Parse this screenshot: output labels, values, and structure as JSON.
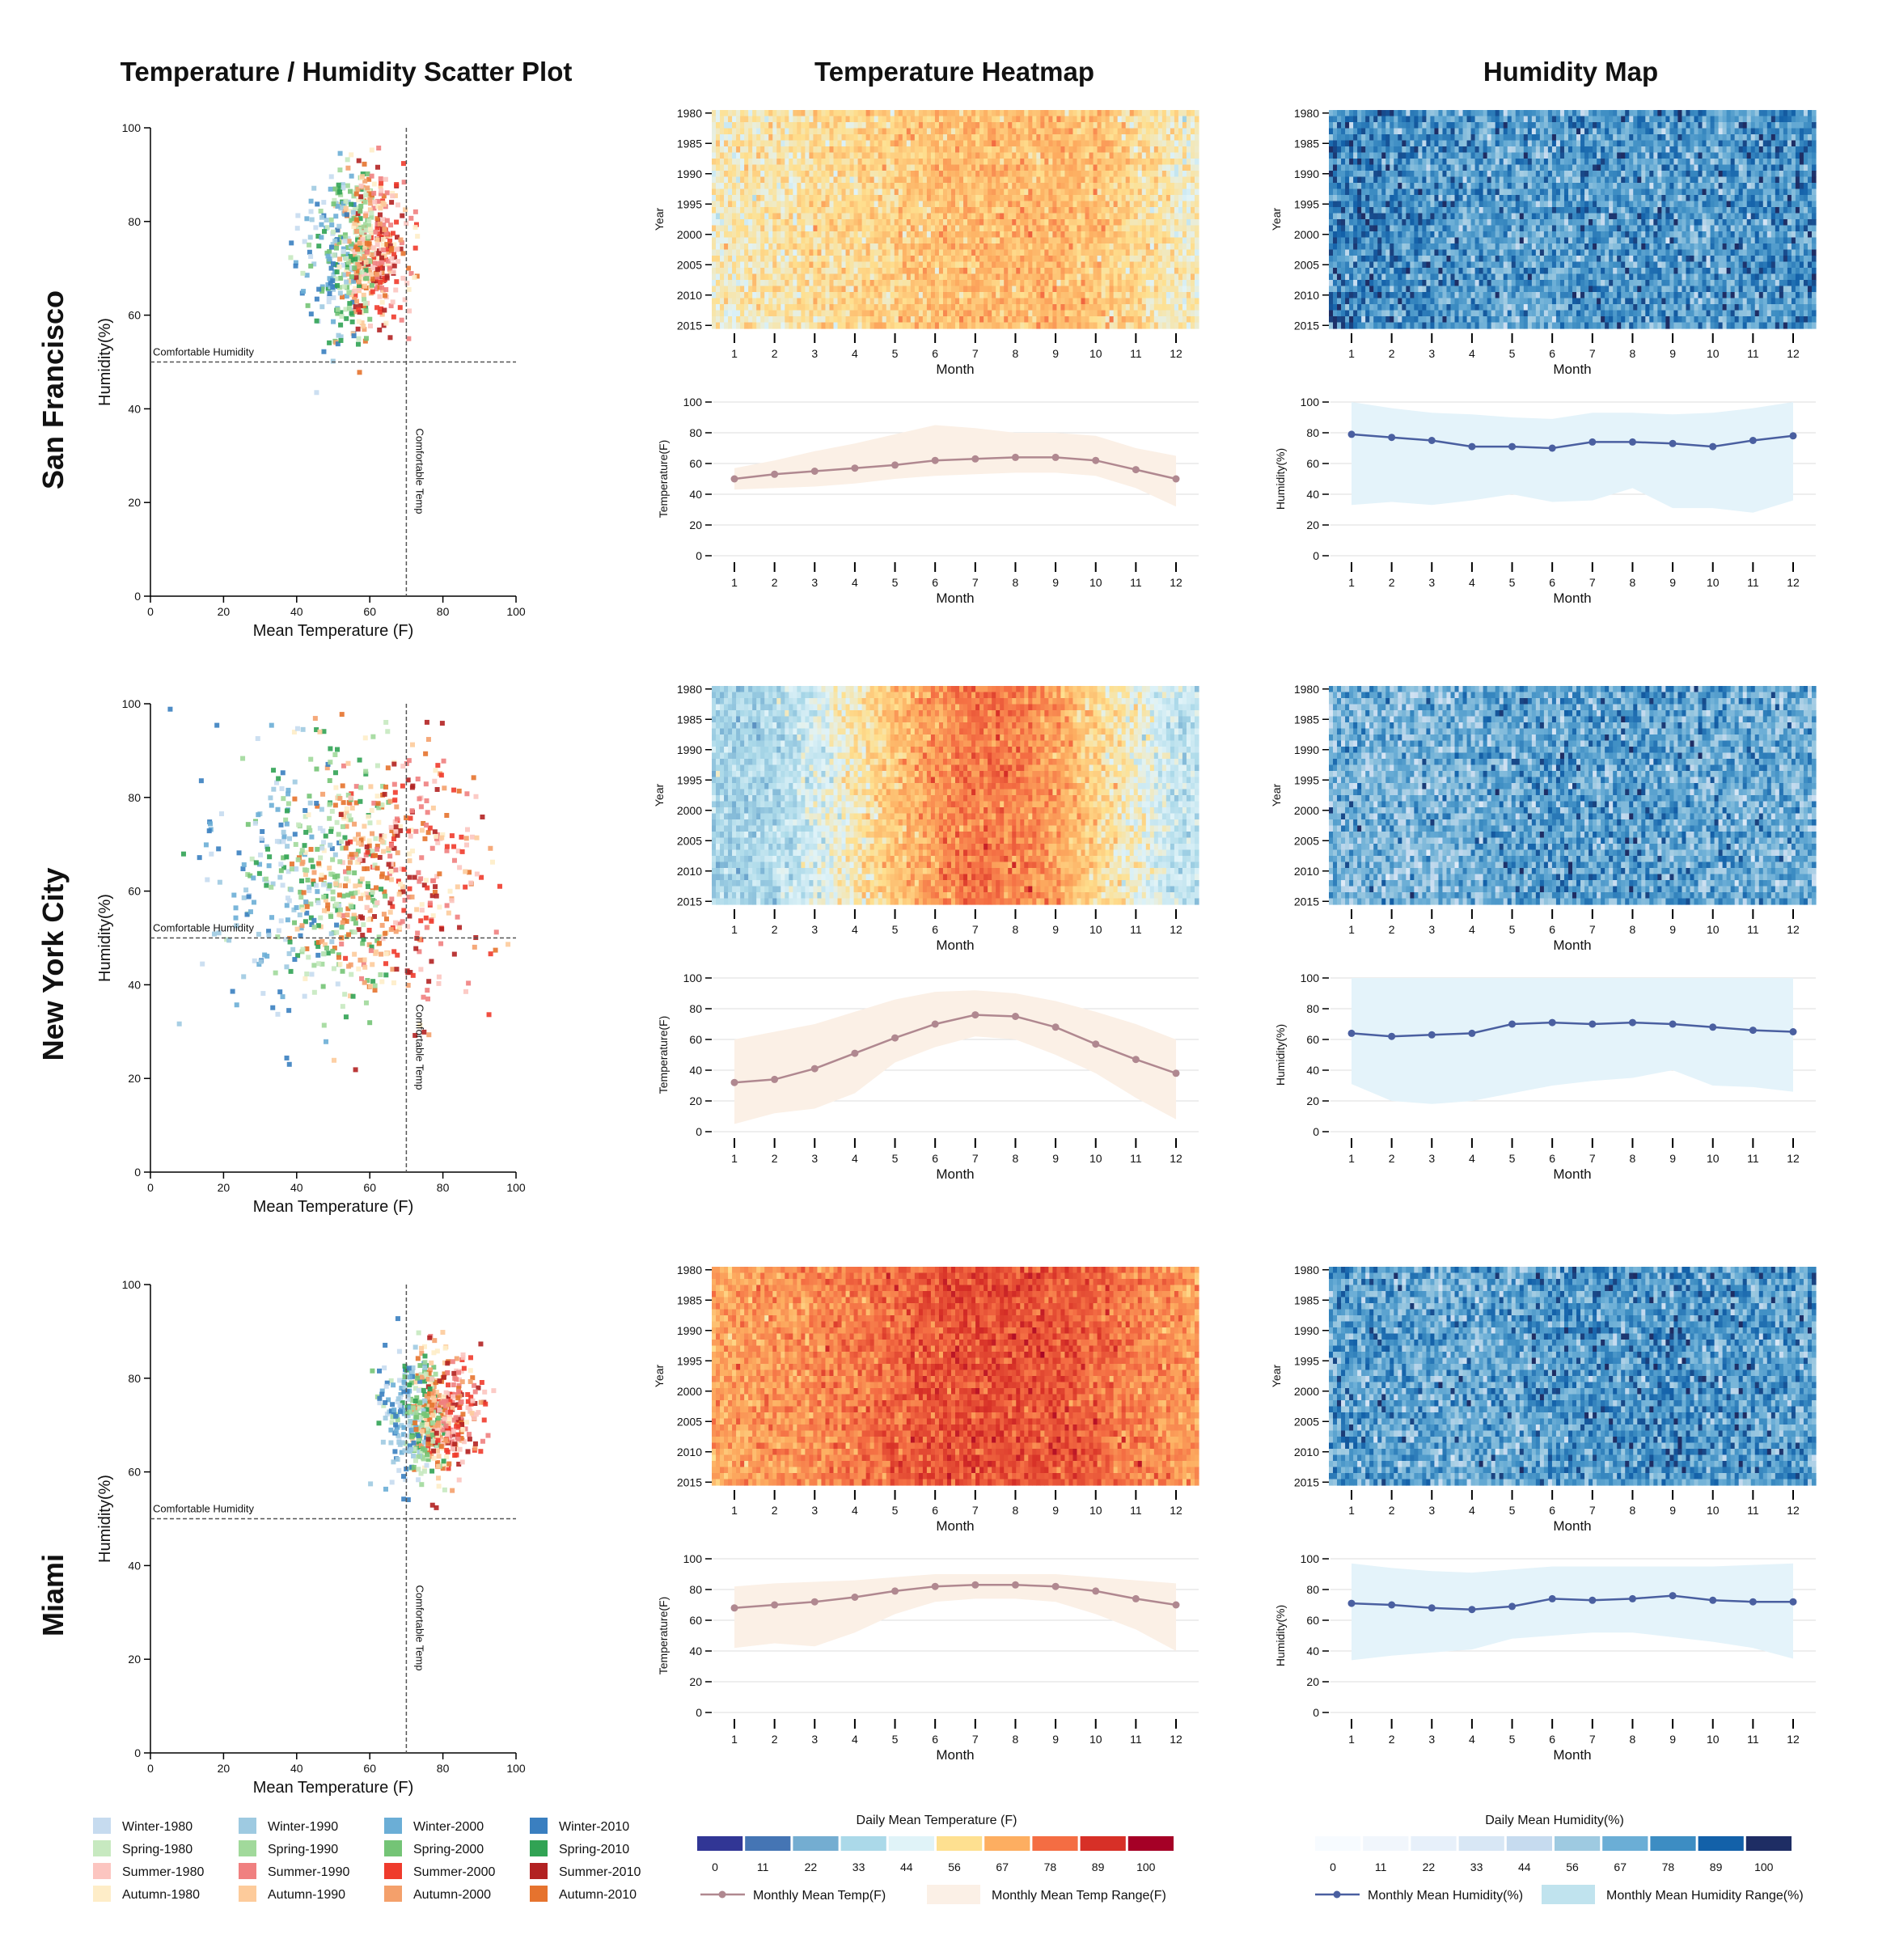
{
  "titles": {
    "scatter": "Temperature / Humidity Scatter Plot",
    "heatmap": "Temperature Heatmap",
    "humidity": "Humidity Map"
  },
  "labels": {
    "month": "Month",
    "year": "Year",
    "temperature_axis": "Temperature(F)",
    "humidity_axis": "Humidity(%)",
    "mean_temp_axis": "Mean Temperature (F)",
    "comfortable_humidity": "Comfortable Humidity",
    "comfortable_temp": "Comfortable Temp"
  },
  "legend": {
    "season_entries": [
      {
        "label": "Winter-1980",
        "color": "#c6dbef"
      },
      {
        "label": "Spring-1980",
        "color": "#c7e9c0"
      },
      {
        "label": "Summer-1980",
        "color": "#fcc5c0"
      },
      {
        "label": "Autumn-1980",
        "color": "#feedc8"
      },
      {
        "label": "Winter-1990",
        "color": "#9ecae1"
      },
      {
        "label": "Spring-1990",
        "color": "#a1d99b"
      },
      {
        "label": "Summer-1990",
        "color": "#f08080"
      },
      {
        "label": "Autumn-1990",
        "color": "#fdcb9b"
      },
      {
        "label": "Winter-2000",
        "color": "#6baed6"
      },
      {
        "label": "Spring-2000",
        "color": "#74c476"
      },
      {
        "label": "Summer-2000",
        "color": "#ef3b2c"
      },
      {
        "label": "Autumn-2000",
        "color": "#f4a06b"
      },
      {
        "label": "Winter-2010",
        "color": "#3a7fc0"
      },
      {
        "label": "Spring-2010",
        "color": "#31a354"
      },
      {
        "label": "Summer-2010",
        "color": "#b22222"
      },
      {
        "label": "Autumn-2010",
        "color": "#e6732e"
      }
    ],
    "temp_scale": {
      "title": "Daily Mean Temperature (F)",
      "ticks": [
        "0",
        "11",
        "22",
        "33",
        "44",
        "56",
        "67",
        "78",
        "89",
        "100"
      ],
      "colors": [
        "#313695",
        "#4575b4",
        "#74add1",
        "#abd9e9",
        "#e0f3f8",
        "#fee090",
        "#fdae61",
        "#f46d43",
        "#d73027",
        "#a50026"
      ]
    },
    "humidity_scale": {
      "title": "Daily Mean Humidity(%)",
      "ticks": [
        "0",
        "11",
        "22",
        "33",
        "44",
        "56",
        "67",
        "78",
        "89",
        "100"
      ],
      "colors": [
        "#f7fbff",
        "#f1f6fc",
        "#e7f0fa",
        "#d8e7f5",
        "#c6dbef",
        "#9ecae1",
        "#6baed6",
        "#3d8dc3",
        "#1361a9",
        "#1e2d64"
      ]
    },
    "temp_line_label": "Monthly Mean Temp(F)",
    "temp_range_label": "Monthly Mean Temp Range(F)",
    "humidity_line_label": "Monthly Mean Humidity(%)",
    "humidity_range_label": "Monthly Mean Humidity Range(%)",
    "colors": {
      "temp_line": "#b08890",
      "temp_range": "#fbf0e6",
      "humidity_line": "#4a5fa0",
      "humidity_range": "#e4f3fa",
      "humidity_range_legend": "#c0e3ee"
    }
  },
  "chart_data": [
    {
      "type": "scatter",
      "city": "San Francisco",
      "title": "Temperature / Humidity Scatter Plot",
      "xlabel": "Mean Temperature (F)",
      "ylabel": "Humidity(%)",
      "xlim": [
        0,
        100
      ],
      "ylim": [
        0,
        100
      ],
      "xticks": [
        0,
        20,
        40,
        60,
        80,
        100
      ],
      "yticks": [
        0,
        20,
        40,
        60,
        80,
        100
      ],
      "comfortable_temp": 70,
      "comfortable_humidity": 50,
      "cluster": {
        "temp_mean": 57,
        "temp_sd": 6.5,
        "hum_mean": 74,
        "hum_sd": 9,
        "points": 640
      }
    },
    {
      "type": "heatmap",
      "city": "San Francisco",
      "metric": "temperature",
      "years": [
        1980,
        2015
      ],
      "months": [
        1,
        12
      ],
      "ytick_labels": [
        "1980",
        "1985",
        "1990",
        "1995",
        "2000",
        "2005",
        "2010",
        "2015"
      ],
      "xtick_labels": [
        "1",
        "2",
        "3",
        "4",
        "5",
        "6",
        "7",
        "8",
        "9",
        "10",
        "11",
        "12"
      ],
      "color_range": [
        0,
        100
      ]
    },
    {
      "type": "line",
      "city": "San Francisco",
      "metric": "temperature",
      "ylabel": "Temperature(F)",
      "xlabel": "Month",
      "ylim": [
        0,
        100
      ],
      "yticks": [
        0,
        20,
        40,
        60,
        80,
        100
      ],
      "x": [
        1,
        2,
        3,
        4,
        5,
        6,
        7,
        8,
        9,
        10,
        11,
        12
      ],
      "mean": [
        50,
        53,
        55,
        57,
        59,
        62,
        63,
        64,
        64,
        62,
        56,
        50
      ],
      "min": [
        43,
        44,
        45,
        47,
        50,
        52,
        53,
        54,
        54,
        52,
        44,
        32
      ],
      "max": [
        57,
        62,
        68,
        73,
        79,
        85,
        83,
        80,
        80,
        78,
        70,
        65
      ]
    },
    {
      "type": "heatmap",
      "city": "San Francisco",
      "metric": "humidity",
      "years": [
        1980,
        2015
      ],
      "months": [
        1,
        12
      ],
      "ytick_labels": [
        "1980",
        "1985",
        "1990",
        "1995",
        "2000",
        "2005",
        "2010",
        "2015"
      ],
      "xtick_labels": [
        "1",
        "2",
        "3",
        "4",
        "5",
        "6",
        "7",
        "8",
        "9",
        "10",
        "11",
        "12"
      ],
      "color_range": [
        0,
        100
      ]
    },
    {
      "type": "line",
      "city": "San Francisco",
      "metric": "humidity",
      "ylabel": "Humidity(%)",
      "xlabel": "Month",
      "ylim": [
        0,
        100
      ],
      "yticks": [
        0,
        20,
        40,
        60,
        80,
        100
      ],
      "x": [
        1,
        2,
        3,
        4,
        5,
        6,
        7,
        8,
        9,
        10,
        11,
        12
      ],
      "mean": [
        79,
        77,
        75,
        71,
        71,
        70,
        74,
        74,
        73,
        71,
        75,
        78
      ],
      "min": [
        33,
        35,
        33,
        36,
        40,
        35,
        36,
        44,
        31,
        31,
        28,
        36
      ],
      "max": [
        100,
        96,
        93,
        92,
        90,
        89,
        93,
        93,
        92,
        93,
        96,
        100
      ]
    },
    {
      "type": "scatter",
      "city": "New York City",
      "title": "Temperature / Humidity Scatter Plot",
      "xlabel": "Mean Temperature (F)",
      "ylabel": "Humidity(%)",
      "xlim": [
        0,
        100
      ],
      "ylim": [
        0,
        100
      ],
      "xticks": [
        0,
        20,
        40,
        60,
        80,
        100
      ],
      "yticks": [
        0,
        20,
        40,
        60,
        80,
        100
      ],
      "comfortable_temp": 70,
      "comfortable_humidity": 50,
      "cluster": {
        "temp_mean": 55,
        "temp_sd": 17,
        "hum_mean": 63,
        "hum_sd": 14,
        "points": 820
      }
    },
    {
      "type": "heatmap",
      "city": "New York City",
      "metric": "temperature",
      "years": [
        1980,
        2015
      ],
      "months": [
        1,
        12
      ],
      "ytick_labels": [
        "1980",
        "1985",
        "1990",
        "1995",
        "2000",
        "2005",
        "2010",
        "2015"
      ],
      "xtick_labels": [
        "1",
        "2",
        "3",
        "4",
        "5",
        "6",
        "7",
        "8",
        "9",
        "10",
        "11",
        "12"
      ],
      "color_range": [
        0,
        100
      ]
    },
    {
      "type": "line",
      "city": "New York City",
      "metric": "temperature",
      "ylabel": "Temperature(F)",
      "xlabel": "Month",
      "ylim": [
        0,
        100
      ],
      "yticks": [
        0,
        20,
        40,
        60,
        80,
        100
      ],
      "x": [
        1,
        2,
        3,
        4,
        5,
        6,
        7,
        8,
        9,
        10,
        11,
        12
      ],
      "mean": [
        32,
        34,
        41,
        51,
        61,
        70,
        76,
        75,
        68,
        57,
        47,
        38
      ],
      "min": [
        5,
        12,
        15,
        25,
        45,
        55,
        62,
        60,
        50,
        38,
        22,
        8
      ],
      "max": [
        60,
        65,
        70,
        78,
        86,
        91,
        92,
        90,
        85,
        78,
        70,
        60
      ]
    },
    {
      "type": "heatmap",
      "city": "New York City",
      "metric": "humidity",
      "years": [
        1980,
        2015
      ],
      "months": [
        1,
        12
      ],
      "ytick_labels": [
        "1980",
        "1985",
        "1990",
        "1995",
        "2000",
        "2005",
        "2010",
        "2015"
      ],
      "xtick_labels": [
        "1",
        "2",
        "3",
        "4",
        "5",
        "6",
        "7",
        "8",
        "9",
        "10",
        "11",
        "12"
      ],
      "color_range": [
        0,
        100
      ]
    },
    {
      "type": "line",
      "city": "New York City",
      "metric": "humidity",
      "ylabel": "Humidity(%)",
      "xlabel": "Month",
      "ylim": [
        0,
        100
      ],
      "yticks": [
        0,
        20,
        40,
        60,
        80,
        100
      ],
      "x": [
        1,
        2,
        3,
        4,
        5,
        6,
        7,
        8,
        9,
        10,
        11,
        12
      ],
      "mean": [
        64,
        62,
        63,
        64,
        70,
        71,
        70,
        71,
        70,
        68,
        66,
        65
      ],
      "min": [
        31,
        20,
        18,
        20,
        25,
        30,
        33,
        35,
        40,
        30,
        29,
        26
      ],
      "max": [
        100,
        100,
        100,
        100,
        100,
        100,
        100,
        100,
        100,
        100,
        100,
        100
      ]
    },
    {
      "type": "scatter",
      "city": "Miami",
      "title": "Temperature / Humidity Scatter Plot",
      "xlabel": "Mean Temperature (F)",
      "ylabel": "Humidity(%)",
      "xlim": [
        0,
        100
      ],
      "ylim": [
        0,
        100
      ],
      "xticks": [
        0,
        20,
        40,
        60,
        80,
        100
      ],
      "yticks": [
        0,
        20,
        40,
        60,
        80,
        100
      ],
      "comfortable_temp": 70,
      "comfortable_humidity": 50,
      "cluster": {
        "temp_mean": 77,
        "temp_sd": 6,
        "hum_mean": 72,
        "hum_sd": 6.5,
        "points": 640
      }
    },
    {
      "type": "heatmap",
      "city": "Miami",
      "metric": "temperature",
      "years": [
        1980,
        2015
      ],
      "months": [
        1,
        12
      ],
      "ytick_labels": [
        "1980",
        "1985",
        "1990",
        "1995",
        "2000",
        "2005",
        "2010",
        "2015"
      ],
      "xtick_labels": [
        "1",
        "2",
        "3",
        "4",
        "5",
        "6",
        "7",
        "8",
        "9",
        "10",
        "11",
        "12"
      ],
      "color_range": [
        0,
        100
      ]
    },
    {
      "type": "line",
      "city": "Miami",
      "metric": "temperature",
      "ylabel": "Temperature(F)",
      "xlabel": "Month",
      "ylim": [
        0,
        100
      ],
      "yticks": [
        0,
        20,
        40,
        60,
        80,
        100
      ],
      "x": [
        1,
        2,
        3,
        4,
        5,
        6,
        7,
        8,
        9,
        10,
        11,
        12
      ],
      "mean": [
        68,
        70,
        72,
        75,
        79,
        82,
        83,
        83,
        82,
        79,
        74,
        70
      ],
      "min": [
        42,
        45,
        43,
        52,
        64,
        72,
        74,
        74,
        72,
        64,
        54,
        40
      ],
      "max": [
        82,
        84,
        85,
        86,
        88,
        90,
        90,
        90,
        90,
        88,
        86,
        84
      ]
    },
    {
      "type": "heatmap",
      "city": "Miami",
      "metric": "humidity",
      "years": [
        1980,
        2015
      ],
      "months": [
        1,
        12
      ],
      "ytick_labels": [
        "1980",
        "1985",
        "1990",
        "1995",
        "2000",
        "2005",
        "2010",
        "2015"
      ],
      "xtick_labels": [
        "1",
        "2",
        "3",
        "4",
        "5",
        "6",
        "7",
        "8",
        "9",
        "10",
        "11",
        "12"
      ],
      "color_range": [
        0,
        100
      ]
    },
    {
      "type": "line",
      "city": "Miami",
      "metric": "humidity",
      "ylabel": "Humidity(%)",
      "xlabel": "Month",
      "ylim": [
        0,
        100
      ],
      "yticks": [
        0,
        20,
        40,
        60,
        80,
        100
      ],
      "x": [
        1,
        2,
        3,
        4,
        5,
        6,
        7,
        8,
        9,
        10,
        11,
        12
      ],
      "mean": [
        71,
        70,
        68,
        67,
        69,
        74,
        73,
        74,
        76,
        73,
        72,
        72
      ],
      "min": [
        34,
        37,
        39,
        41,
        48,
        50,
        52,
        52,
        49,
        46,
        42,
        35
      ],
      "max": [
        97,
        94,
        92,
        91,
        93,
        95,
        95,
        95,
        95,
        95,
        96,
        97
      ]
    }
  ]
}
